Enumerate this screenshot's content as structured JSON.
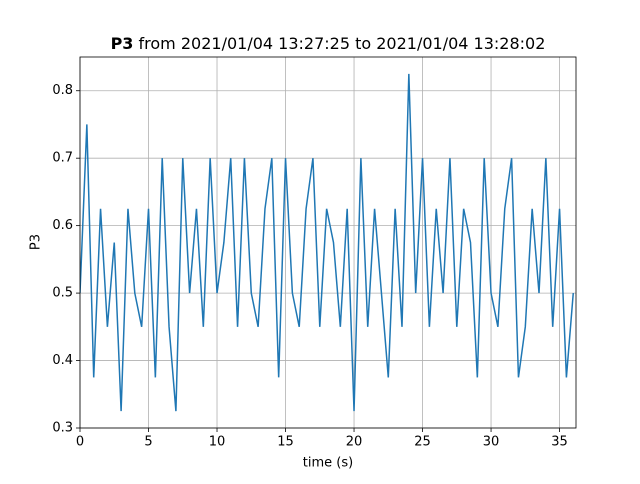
{
  "chart_data": {
    "type": "line",
    "title_signal": "P3",
    "title_rest": "from 2021/01/04 13:27:25 to 2021/01/04 13:28:02",
    "xlabel": "time (s)",
    "ylabel": "P3",
    "x": [
      0,
      0.5,
      1,
      1.5,
      2,
      2.5,
      3,
      3.5,
      4,
      4.5,
      5,
      5.5,
      6,
      6.5,
      7,
      7.5,
      8,
      8.5,
      9,
      9.5,
      10,
      10.5,
      11,
      11.5,
      12,
      12.5,
      13,
      13.5,
      14,
      14.5,
      15,
      15.5,
      16,
      16.5,
      17,
      17.5,
      18,
      18.5,
      19,
      19.5,
      20,
      20.5,
      21,
      21.5,
      22,
      22.5,
      23,
      23.5,
      24,
      24.5,
      25,
      25.5,
      26,
      26.5,
      27,
      27.5,
      28,
      28.5,
      29,
      29.5,
      30,
      30.5,
      31,
      31.5,
      32,
      32.5,
      33,
      33.5,
      34,
      34.5,
      35,
      35.5,
      36
    ],
    "series": [
      {
        "name": "P3",
        "color": "#1f77b4",
        "values": [
          0.5,
          0.75,
          0.375,
          0.625,
          0.45,
          0.575,
          0.325,
          0.625,
          0.5,
          0.45,
          0.625,
          0.375,
          0.7,
          0.45,
          0.325,
          0.7,
          0.5,
          0.625,
          0.45,
          0.7,
          0.5,
          0.575,
          0.7,
          0.45,
          0.7,
          0.5,
          0.45,
          0.625,
          0.7,
          0.375,
          0.7,
          0.5,
          0.45,
          0.625,
          0.7,
          0.45,
          0.625,
          0.575,
          0.45,
          0.625,
          0.325,
          0.7,
          0.45,
          0.625,
          0.5,
          0.375,
          0.625,
          0.45,
          0.825,
          0.5,
          0.7,
          0.45,
          0.625,
          0.5,
          0.7,
          0.45,
          0.625,
          0.575,
          0.375,
          0.7,
          0.5,
          0.45,
          0.625,
          0.7,
          0.375,
          0.45,
          0.625,
          0.5,
          0.7,
          0.45,
          0.625,
          0.375,
          0.5
        ]
      }
    ],
    "xlim": [
      0,
      36.2
    ],
    "xticks": [
      0,
      5,
      10,
      15,
      20,
      25,
      30,
      35
    ],
    "ylim": [
      0.3,
      0.85
    ],
    "yticks": [
      0.3,
      0.4,
      0.5,
      0.6,
      0.7,
      0.8
    ],
    "grid": true
  }
}
